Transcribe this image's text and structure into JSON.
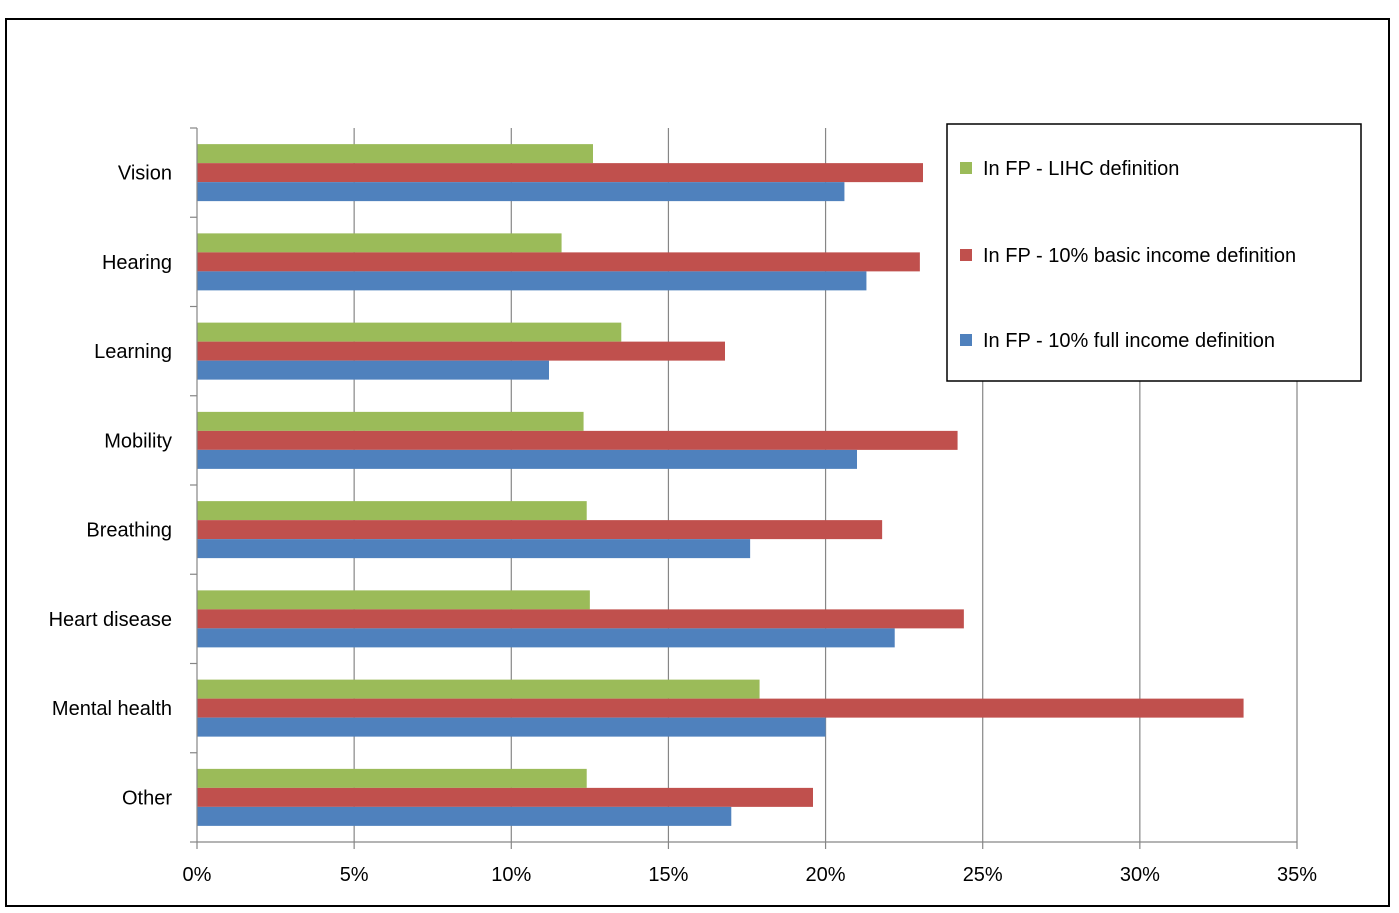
{
  "chart_data": {
    "type": "bar",
    "orientation": "horizontal",
    "title": "",
    "categories": [
      "Vision",
      "Hearing",
      "Learning",
      "Mobility",
      "Breathing",
      "Heart disease",
      "Mental health",
      "Other"
    ],
    "series": [
      {
        "name": "In FP - LIHC definition",
        "color": "#9BBB59",
        "values": [
          12.6,
          11.6,
          13.5,
          12.3,
          12.4,
          12.5,
          17.9,
          12.4
        ]
      },
      {
        "name": "In FP - 10% basic income definition",
        "color": "#C0504D",
        "values": [
          23.1,
          23.0,
          16.8,
          24.2,
          21.8,
          24.4,
          33.3,
          19.6
        ]
      },
      {
        "name": "In FP - 10% full income definition",
        "color": "#4F81BD",
        "values": [
          20.6,
          21.3,
          11.2,
          21.0,
          17.6,
          22.2,
          20.0,
          17.0
        ]
      }
    ],
    "xlabel": "",
    "ylabel": "",
    "xlim": [
      0,
      35
    ],
    "xticks": [
      0,
      5,
      10,
      15,
      20,
      25,
      30,
      35
    ],
    "xtick_labels": [
      "0%",
      "5%",
      "10%",
      "15%",
      "20%",
      "25%",
      "30%",
      "35%"
    ],
    "grid": "vertical",
    "legend": "top-right"
  }
}
